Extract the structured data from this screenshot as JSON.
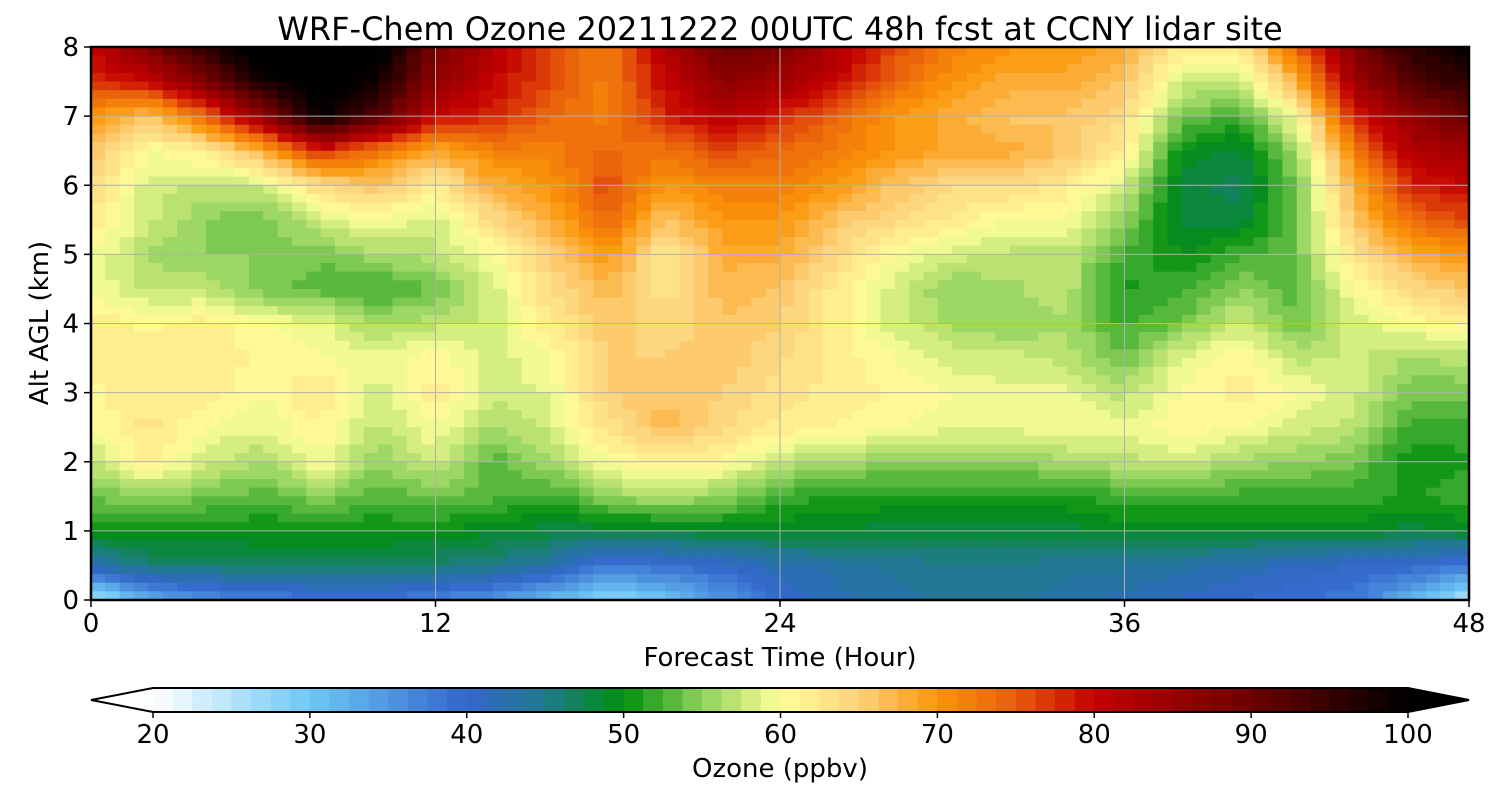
{
  "chart_data": {
    "type": "heatmap",
    "title": "WRF-Chem Ozone  20211222 00UTC 48h fcst at CCNY lidar site",
    "xlabel": "Forecast Time (Hour)",
    "ylabel": "Alt AGL (km)",
    "xlim": [
      0,
      48
    ],
    "ylim": [
      0,
      8
    ],
    "x_ticks": [
      0,
      12,
      24,
      36,
      48
    ],
    "y_ticks": [
      0,
      1,
      2,
      3,
      4,
      5,
      6,
      7,
      8
    ],
    "grid": true,
    "x": [
      0,
      2,
      4,
      6,
      8,
      10,
      12,
      14,
      16,
      18,
      20,
      22,
      24,
      26,
      28,
      30,
      32,
      34,
      36,
      38,
      40,
      42,
      44,
      46,
      48
    ],
    "y": [
      0,
      0.5,
      1,
      1.5,
      2,
      2.5,
      3,
      3.5,
      4,
      4.5,
      5,
      5.5,
      6,
      6.5,
      7,
      7.5,
      8
    ],
    "z": [
      [
        25,
        32,
        36,
        37,
        38,
        38,
        37,
        35,
        31,
        28,
        30,
        35,
        40,
        42,
        43,
        44,
        44,
        43,
        42,
        41,
        40,
        39,
        38,
        32,
        25
      ],
      [
        42,
        46,
        46,
        47,
        47,
        47,
        46,
        45,
        43,
        38,
        39,
        40,
        42,
        43,
        44,
        45,
        45,
        44,
        44,
        43,
        42,
        41,
        40,
        40,
        38
      ],
      [
        50,
        50,
        50,
        50,
        50,
        50,
        50,
        49,
        48,
        48,
        48,
        49,
        49,
        49,
        48,
        48,
        48,
        48,
        49,
        49,
        49,
        49,
        49,
        48,
        49
      ],
      [
        54,
        55,
        54,
        53,
        55,
        53,
        54,
        53,
        52,
        55,
        57,
        55,
        52,
        51,
        51,
        51,
        51,
        51,
        52,
        52,
        52,
        52,
        52,
        51,
        52
      ],
      [
        57,
        62,
        58,
        56,
        60,
        55,
        58,
        53,
        56,
        60,
        62,
        61,
        57,
        56,
        55,
        55,
        55,
        56,
        57,
        58,
        56,
        55,
        54,
        50,
        51
      ],
      [
        60,
        63,
        60,
        59,
        61,
        57,
        60,
        56,
        58,
        63,
        67,
        64,
        62,
        61,
        60,
        59,
        59,
        60,
        59,
        61,
        60,
        58,
        57,
        52,
        52
      ],
      [
        61,
        62,
        62,
        60,
        63,
        58,
        62,
        58,
        59,
        65,
        66,
        65,
        63,
        62,
        61,
        60,
        59,
        59,
        57,
        60,
        62,
        60,
        58,
        54,
        54
      ],
      [
        62,
        62,
        62,
        61,
        60,
        59,
        61,
        58,
        60,
        65,
        65,
        66,
        64,
        62,
        60,
        58,
        58,
        57,
        54,
        59,
        61,
        57,
        58,
        56,
        57
      ],
      [
        62,
        61,
        62,
        60,
        59,
        56,
        57,
        58,
        62,
        66,
        64,
        66,
        65,
        62,
        58,
        56,
        55,
        56,
        52,
        54,
        58,
        54,
        58,
        60,
        62
      ],
      [
        60,
        57,
        57,
        54,
        53,
        52,
        54,
        58,
        64,
        67,
        63,
        67,
        66,
        62,
        58,
        55,
        56,
        57,
        51,
        52,
        55,
        53,
        60,
        64,
        66
      ],
      [
        60,
        56,
        55,
        55,
        54,
        56,
        57,
        60,
        65,
        70,
        62,
        68,
        68,
        64,
        60,
        58,
        57,
        57,
        52,
        50,
        52,
        54,
        63,
        68,
        70
      ],
      [
        62,
        58,
        55,
        54,
        58,
        60,
        58,
        64,
        68,
        74,
        66,
        70,
        70,
        66,
        64,
        62,
        60,
        60,
        55,
        48,
        48,
        54,
        66,
        74,
        76
      ],
      [
        64,
        58,
        57,
        58,
        64,
        66,
        62,
        68,
        70,
        76,
        70,
        72,
        72,
        70,
        66,
        64,
        64,
        62,
        58,
        48,
        47,
        54,
        68,
        78,
        80
      ],
      [
        66,
        60,
        62,
        68,
        78,
        73,
        68,
        72,
        72,
        74,
        73,
        76,
        74,
        72,
        70,
        68,
        68,
        66,
        62,
        50,
        48,
        56,
        72,
        82,
        84
      ],
      [
        70,
        66,
        74,
        86,
        100,
        92,
        80,
        78,
        74,
        72,
        78,
        82,
        78,
        74,
        70,
        68,
        66,
        66,
        64,
        54,
        52,
        60,
        78,
        86,
        90
      ],
      [
        78,
        80,
        88,
        98,
        102,
        98,
        86,
        80,
        76,
        72,
        80,
        86,
        84,
        80,
        74,
        70,
        68,
        68,
        66,
        58,
        58,
        68,
        84,
        92,
        96
      ],
      [
        80,
        88,
        96,
        104,
        104,
        102,
        88,
        82,
        76,
        72,
        82,
        90,
        88,
        82,
        76,
        72,
        70,
        70,
        68,
        62,
        62,
        74,
        88,
        96,
        100
      ]
    ],
    "colorbar": {
      "label": "Ozone  (ppbv)",
      "min": 20,
      "max": 100,
      "ticks": [
        20,
        30,
        40,
        50,
        60,
        70,
        80,
        90,
        100
      ],
      "extend": "both",
      "position": "bottom",
      "colormap": [
        [
          20,
          "#ffffff"
        ],
        [
          30,
          "#6ec8f5"
        ],
        [
          40,
          "#3366cc"
        ],
        [
          45,
          "#1f7a8c"
        ],
        [
          50,
          "#008f0f"
        ],
        [
          55,
          "#8fd15c"
        ],
        [
          60,
          "#ffff99"
        ],
        [
          65,
          "#fdd17c"
        ],
        [
          70,
          "#fb9608"
        ],
        [
          75,
          "#e85d0c"
        ],
        [
          80,
          "#c40000"
        ],
        [
          90,
          "#6b0000"
        ],
        [
          100,
          "#000000"
        ]
      ]
    }
  }
}
